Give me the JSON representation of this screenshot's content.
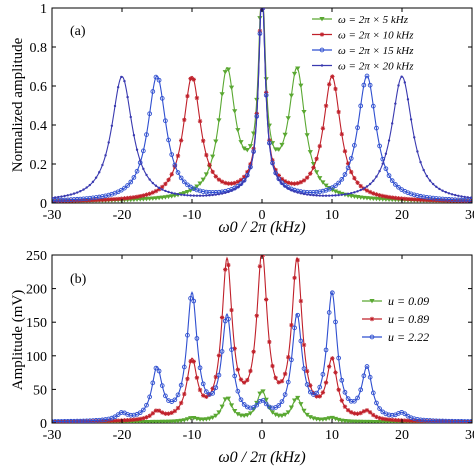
{
  "colors": {
    "green": "#5aa832",
    "red": "#c0202a",
    "blue": "#2f4fd0",
    "navy": "#3a3ab0"
  },
  "chart_data": [
    {
      "type": "line",
      "panel_label": "(a)",
      "xlabel": "ω0 / 2π (kHz)",
      "ylabel": "Normalized amplitude",
      "xlim": [
        -30,
        30
      ],
      "ylim": [
        0,
        1
      ],
      "xticks": [
        "-30",
        "-20",
        "-10",
        "0",
        "10",
        "20",
        "30"
      ],
      "yticks": [
        "0",
        "0.2",
        "0.4",
        "0.6",
        "0.8",
        "1"
      ],
      "legend_position": "top-right",
      "grid": false,
      "series": [
        {
          "name": "ω = 2π × 5 kHz",
          "color": "#5aa832",
          "marker": "triangle-down",
          "drive_khz": 5,
          "side_peak": 0.64,
          "width_khz": 1.4
        },
        {
          "name": "ω = 2π × 10 kHz",
          "color": "#c0202a",
          "marker": "star",
          "drive_khz": 10,
          "side_peak": 0.63,
          "width_khz": 1.5
        },
        {
          "name": "ω = 2π × 15 kHz",
          "color": "#2f4fd0",
          "marker": "circle",
          "drive_khz": 15,
          "side_peak": 0.64,
          "width_khz": 1.6
        },
        {
          "name": "ω = 2π × 20 kHz",
          "color": "#3a3ab0",
          "marker": "dot",
          "drive_khz": 20,
          "side_peak": 0.64,
          "width_khz": 1.8
        }
      ],
      "center_peak": 1.0
    },
    {
      "type": "line",
      "panel_label": "(b)",
      "xlabel": "ω0 / 2π (kHz)",
      "ylabel": "Amplitude (mV)",
      "xlim": [
        -30,
        30
      ],
      "ylim": [
        0,
        250
      ],
      "xticks": [
        "-30",
        "-20",
        "-10",
        "0",
        "10",
        "20",
        "30"
      ],
      "yticks": [
        "0",
        "50",
        "100",
        "150",
        "200",
        "250"
      ],
      "legend_position": "right",
      "grid": false,
      "series": [
        {
          "name": "u = 0.09",
          "color": "#5aa832",
          "marker": "triangle-down",
          "peaks": [
            [
              -5,
              35
            ],
            [
              0,
              45
            ],
            [
              5,
              35
            ],
            [
              -10,
              5
            ],
            [
              10,
              5
            ]
          ]
        },
        {
          "name": "u = 0.89",
          "color": "#c0202a",
          "marker": "star",
          "peaks": [
            [
              -5,
              232
            ],
            [
              0,
              240
            ],
            [
              5,
              232
            ],
            [
              -10,
              85
            ],
            [
              10,
              85
            ],
            [
              -15,
              12
            ],
            [
              15,
              12
            ]
          ]
        },
        {
          "name": "u = 2.22",
          "color": "#2f4fd0",
          "marker": "circle",
          "peaks": [
            [
              -15,
              75
            ],
            [
              -10,
              185
            ],
            [
              -5,
              152
            ],
            [
              0,
              20
            ],
            [
              5,
              152
            ],
            [
              10,
              185
            ],
            [
              15,
              75
            ],
            [
              -20,
              10
            ],
            [
              20,
              10
            ]
          ]
        }
      ]
    }
  ]
}
